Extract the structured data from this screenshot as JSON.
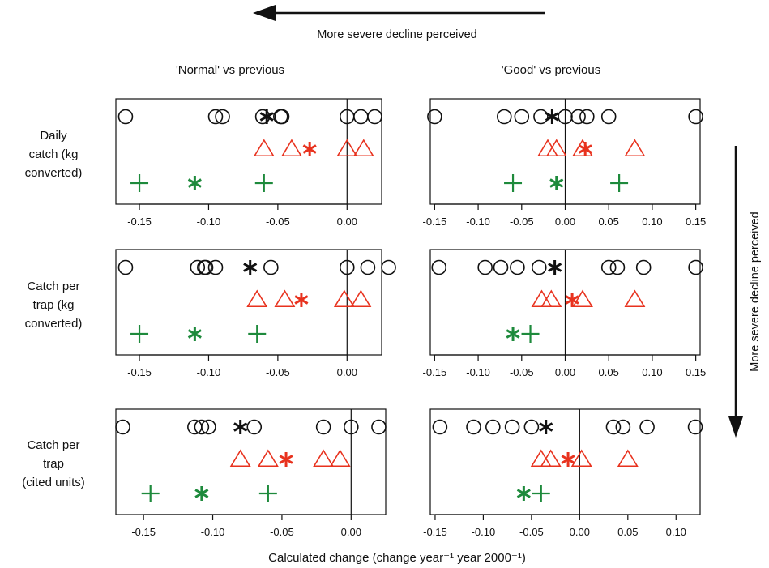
{
  "top_arrow_label": "More severe decline perceived",
  "right_arrow_label": "More severe decline perceived",
  "column_titles": [
    "'Normal' vs previous",
    "'Good' vs previous"
  ],
  "row_labels": [
    [
      "Daily",
      "catch (kg",
      "converted)"
    ],
    [
      "Catch per",
      "trap (kg",
      "converted)"
    ],
    [
      "Catch per",
      "trap",
      "(cited units)"
    ]
  ],
  "x_axis_title": "Calculated change (change year⁻¹ year 2000⁻¹)",
  "colors": {
    "black": "#111111",
    "red": "#e8321e",
    "green": "#1e8a3c"
  },
  "chart_data": [
    {
      "type": "scatter",
      "row": 1,
      "column": "'Normal' vs previous",
      "xlim": [
        -0.167,
        0.025
      ],
      "xticks": [
        -0.15,
        -0.1,
        -0.05,
        0.0
      ],
      "tick_labels": [
        "-0.15",
        "-0.10",
        "-0.05",
        "0.00"
      ],
      "reference_line_x": 0,
      "series": [
        {
          "marker": "circle",
          "color": "black",
          "x": [
            -0.16,
            -0.095,
            -0.09,
            -0.061,
            -0.048,
            -0.047,
            0.0,
            0.01,
            0.02
          ]
        },
        {
          "marker": "asterisk",
          "color": "black",
          "x": [
            -0.058
          ]
        },
        {
          "marker": "triangle",
          "color": "red",
          "x": [
            -0.06,
            -0.04,
            0.0,
            0.012
          ]
        },
        {
          "marker": "asterisk",
          "color": "red",
          "x": [
            -0.027
          ]
        },
        {
          "marker": "plus",
          "color": "green",
          "x": [
            -0.15,
            -0.06
          ]
        },
        {
          "marker": "asterisk",
          "color": "green",
          "x": [
            -0.11
          ]
        }
      ]
    },
    {
      "type": "scatter",
      "row": 1,
      "column": "'Good' vs previous",
      "xlim": [
        -0.155,
        0.155
      ],
      "xticks": [
        -0.15,
        -0.1,
        -0.05,
        0.0,
        0.05,
        0.1,
        0.15
      ],
      "tick_labels": [
        "-0.15",
        "-0.10",
        "-0.05",
        "0.00",
        "0.05",
        "0.10",
        "0.15"
      ],
      "reference_line_x": 0,
      "series": [
        {
          "marker": "circle",
          "color": "black",
          "x": [
            -0.15,
            -0.07,
            -0.05,
            -0.028,
            0.0,
            0.015,
            0.025,
            0.05,
            0.15
          ]
        },
        {
          "marker": "asterisk",
          "color": "black",
          "x": [
            -0.015
          ]
        },
        {
          "marker": "triangle",
          "color": "red",
          "x": [
            -0.02,
            -0.01,
            0.02,
            0.08
          ]
        },
        {
          "marker": "asterisk",
          "color": "red",
          "x": [
            0.023
          ]
        },
        {
          "marker": "plus",
          "color": "green",
          "x": [
            -0.06,
            0.062
          ]
        },
        {
          "marker": "asterisk",
          "color": "green",
          "x": [
            -0.01
          ]
        }
      ]
    },
    {
      "type": "scatter",
      "row": 2,
      "column": "'Normal' vs previous",
      "xlim": [
        -0.167,
        0.025
      ],
      "xticks": [
        -0.15,
        -0.1,
        -0.05,
        0.0
      ],
      "tick_labels": [
        "-0.15",
        "-0.10",
        "-0.05",
        "0.00"
      ],
      "reference_line_x": 0,
      "series": [
        {
          "marker": "circle",
          "color": "black",
          "x": [
            -0.16,
            -0.108,
            -0.103,
            -0.102,
            -0.095,
            -0.055,
            0.0,
            0.015,
            0.03
          ]
        },
        {
          "marker": "asterisk",
          "color": "black",
          "x": [
            -0.07
          ]
        },
        {
          "marker": "triangle",
          "color": "red",
          "x": [
            -0.065,
            -0.045,
            -0.002,
            0.01
          ]
        },
        {
          "marker": "asterisk",
          "color": "red",
          "x": [
            -0.033
          ]
        },
        {
          "marker": "plus",
          "color": "green",
          "x": [
            -0.15,
            -0.065
          ]
        },
        {
          "marker": "asterisk",
          "color": "green",
          "x": [
            -0.11
          ]
        }
      ]
    },
    {
      "type": "scatter",
      "row": 2,
      "column": "'Good' vs previous",
      "xlim": [
        -0.155,
        0.155
      ],
      "xticks": [
        -0.15,
        -0.1,
        -0.05,
        0.0,
        0.05,
        0.1,
        0.15
      ],
      "tick_labels": [
        "-0.15",
        "-0.10",
        "-0.05",
        "0.00",
        "0.05",
        "0.10",
        "0.15"
      ],
      "reference_line_x": 0,
      "series": [
        {
          "marker": "circle",
          "color": "black",
          "x": [
            -0.145,
            -0.092,
            -0.074,
            -0.055,
            -0.03,
            0.05,
            0.06,
            0.09,
            0.15
          ]
        },
        {
          "marker": "asterisk",
          "color": "black",
          "x": [
            -0.012
          ]
        },
        {
          "marker": "triangle",
          "color": "red",
          "x": [
            -0.027,
            -0.016,
            0.02,
            0.08
          ]
        },
        {
          "marker": "asterisk",
          "color": "red",
          "x": [
            0.008
          ]
        },
        {
          "marker": "plus",
          "color": "green",
          "x": [
            -0.04
          ]
        },
        {
          "marker": "asterisk",
          "color": "green",
          "x": [
            -0.06
          ]
        }
      ]
    },
    {
      "type": "scatter",
      "row": 3,
      "column": "'Normal' vs previous",
      "xlim": [
        -0.17,
        0.025
      ],
      "xticks": [
        -0.15,
        -0.1,
        -0.05,
        0.0
      ],
      "tick_labels": [
        "-0.15",
        "-0.10",
        "-0.05",
        "0.00"
      ],
      "reference_line_x": 0,
      "series": [
        {
          "marker": "circle",
          "color": "black",
          "x": [
            -0.165,
            -0.113,
            -0.108,
            -0.103,
            -0.07,
            -0.02,
            0.0,
            0.02
          ]
        },
        {
          "marker": "asterisk",
          "color": "black",
          "x": [
            -0.08
          ]
        },
        {
          "marker": "triangle",
          "color": "red",
          "x": [
            -0.08,
            -0.06,
            -0.02,
            -0.008
          ]
        },
        {
          "marker": "asterisk",
          "color": "red",
          "x": [
            -0.047
          ]
        },
        {
          "marker": "plus",
          "color": "green",
          "x": [
            -0.145,
            -0.06
          ]
        },
        {
          "marker": "asterisk",
          "color": "green",
          "x": [
            -0.108
          ]
        }
      ]
    },
    {
      "type": "scatter",
      "row": 3,
      "column": "'Good' vs previous",
      "xlim": [
        -0.155,
        0.125
      ],
      "xticks": [
        -0.15,
        -0.1,
        -0.05,
        0.0,
        0.05,
        0.1
      ],
      "tick_labels": [
        "-0.15",
        "-0.10",
        "-0.05",
        "0.00",
        "0.05",
        "0.10"
      ],
      "reference_line_x": 0,
      "series": [
        {
          "marker": "circle",
          "color": "black",
          "x": [
            -0.145,
            -0.11,
            -0.09,
            -0.07,
            -0.05,
            0.035,
            0.045,
            0.07,
            0.12
          ]
        },
        {
          "marker": "asterisk",
          "color": "black",
          "x": [
            -0.035
          ]
        },
        {
          "marker": "triangle",
          "color": "red",
          "x": [
            -0.04,
            -0.03,
            0.002,
            0.05
          ]
        },
        {
          "marker": "asterisk",
          "color": "red",
          "x": [
            -0.012
          ]
        },
        {
          "marker": "plus",
          "color": "green",
          "x": [
            -0.04
          ]
        },
        {
          "marker": "asterisk",
          "color": "green",
          "x": [
            -0.058
          ]
        }
      ]
    }
  ]
}
